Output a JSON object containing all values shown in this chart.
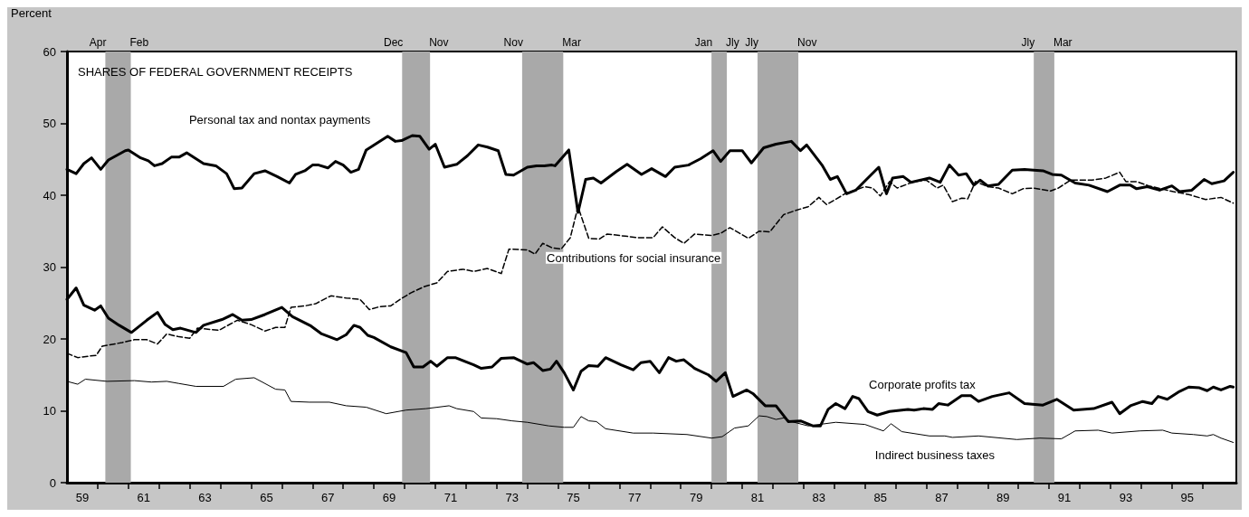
{
  "chart_data": {
    "type": "line",
    "title": "SHARES OF FEDERAL GOVERNMENT RECEIPTS",
    "ylabel": "Percent",
    "xlim": [
      58.5,
      96.6
    ],
    "xticks": [
      59,
      {
        "value": 59.5,
        "label": null
      },
      {
        "value": 60.5,
        "label": null
      },
      61,
      {
        "value": 61.5,
        "label": null
      },
      {
        "value": 62.5,
        "label": null
      },
      63,
      {
        "value": 63.5,
        "label": null
      },
      {
        "value": 64.5,
        "label": null
      },
      65,
      {
        "value": 65.5,
        "label": null
      },
      {
        "value": 66.5,
        "label": null
      },
      67,
      {
        "value": 67.5,
        "label": null
      },
      {
        "value": 68.5,
        "label": null
      },
      69,
      {
        "value": 69.5,
        "label": null
      },
      {
        "value": 70.5,
        "label": null
      },
      71,
      {
        "value": 71.5,
        "label": null
      },
      {
        "value": 72.5,
        "label": null
      },
      73,
      {
        "value": 73.5,
        "label": null
      },
      {
        "value": 74.5,
        "label": null
      },
      75,
      {
        "value": 75.5,
        "label": null
      },
      {
        "value": 76.5,
        "label": null
      },
      77,
      {
        "value": 77.5,
        "label": null
      },
      {
        "value": 78.5,
        "label": null
      },
      79,
      {
        "value": 79.5,
        "label": null
      },
      {
        "value": 80.5,
        "label": null
      },
      81,
      {
        "value": 81.5,
        "label": null
      },
      {
        "value": 82.5,
        "label": null
      },
      83,
      {
        "value": 83.5,
        "label": null
      },
      {
        "value": 84.5,
        "label": null
      },
      85,
      {
        "value": 85.5,
        "label": null
      },
      {
        "value": 86.5,
        "label": null
      },
      87,
      {
        "value": 87.5,
        "label": null
      },
      {
        "value": 88.5,
        "label": null
      },
      89,
      {
        "value": 89.5,
        "label": null
      },
      {
        "value": 90.5,
        "label": null
      },
      91,
      {
        "value": 91.5,
        "label": null
      },
      {
        "value": 92.5,
        "label": null
      },
      93,
      {
        "value": 93.5,
        "label": null
      },
      {
        "value": 94.5,
        "label": null
      },
      95,
      {
        "value": 95.5,
        "label": null
      }
    ],
    "ylim": [
      0,
      60
    ],
    "yticks": [
      0,
      10,
      20,
      30,
      40,
      50,
      60
    ],
    "grid": false,
    "series": [
      {
        "name": "Personal tax and nontax payments",
        "color": "#000000",
        "x": [
          58.5,
          58.8,
          59.05,
          59.3,
          59.6,
          59.85,
          60.4,
          60.5,
          60.9,
          61.15,
          61.35,
          61.6,
          61.9,
          62.15,
          62.4,
          62.95,
          63.35,
          63.7,
          63.95,
          64.2,
          64.6,
          64.95,
          65.35,
          65.75,
          65.95,
          66.25,
          66.5,
          66.7,
          67.0,
          67.25,
          67.5,
          67.75,
          68.0,
          68.25,
          68.95,
          69.2,
          69.4,
          69.75,
          70.0,
          70.3,
          70.5,
          70.8,
          71.2,
          71.55,
          71.9,
          72.2,
          72.55,
          72.8,
          73.05,
          73.5,
          73.8,
          74.05,
          74.3,
          74.4,
          74.85,
          75.15,
          75.4,
          75.65,
          75.9,
          76.4,
          76.75,
          77.22,
          77.55,
          78.0,
          78.3,
          78.75,
          79.15,
          79.55,
          79.8,
          80.1,
          80.5,
          80.8,
          81.2,
          81.6,
          82.1,
          82.4,
          82.6,
          83.1,
          83.37,
          83.6,
          83.9,
          84.2,
          84.55,
          84.95,
          85.2,
          85.4,
          85.75,
          86.0,
          86.6,
          86.95,
          87.25,
          87.55,
          87.8,
          88.05,
          88.25,
          88.5,
          88.85,
          89.3,
          89.7,
          90.3,
          90.6,
          90.9,
          91.35,
          91.8,
          92.4,
          92.8,
          93.15,
          93.35,
          93.7,
          94.1,
          94.5,
          94.75,
          95.15,
          95.55,
          95.8,
          96.2,
          96.5
        ],
        "values": [
          43.6,
          43.0,
          44.4,
          45.2,
          43.6,
          44.9,
          46.2,
          46.3,
          45.2,
          44.8,
          44.1,
          44.4,
          45.3,
          45.3,
          45.9,
          44.4,
          44.1,
          43.0,
          40.9,
          41.0,
          43.0,
          43.4,
          42.6,
          41.7,
          42.9,
          43.4,
          44.2,
          44.2,
          43.8,
          44.7,
          44.2,
          43.2,
          43.6,
          46.3,
          48.2,
          47.5,
          47.6,
          48.3,
          48.2,
          46.4,
          47.1,
          43.9,
          44.3,
          45.5,
          47.0,
          46.7,
          46.2,
          42.9,
          42.8,
          43.9,
          44.1,
          44.1,
          44.2,
          44.1,
          46.3,
          37.6,
          42.2,
          42.4,
          41.7,
          43.3,
          44.3,
          42.9,
          43.7,
          42.6,
          43.9,
          44.2,
          45.1,
          46.2,
          44.7,
          46.2,
          46.2,
          44.5,
          46.6,
          47.1,
          47.5,
          46.2,
          47.0,
          44.2,
          42.2,
          42.6,
          40.2,
          40.7,
          42.2,
          43.9,
          40.2,
          42.4,
          42.6,
          41.8,
          42.4,
          41.8,
          44.2,
          42.8,
          43.0,
          41.4,
          42.1,
          41.3,
          41.5,
          43.5,
          43.6,
          43.4,
          42.9,
          42.8,
          41.7,
          41.4,
          40.5,
          41.4,
          41.4,
          40.9,
          41.2,
          40.7,
          41.3,
          40.5,
          40.7,
          42.2,
          41.6,
          42.0,
          43.2
        ]
      },
      {
        "name": "Contributions for social insurance",
        "color": "#000000",
        "line_style": "dashed",
        "x": [
          58.5,
          58.85,
          59.2,
          59.45,
          59.65,
          60.3,
          60.7,
          61.1,
          61.45,
          61.75,
          62.15,
          62.5,
          62.75,
          63.45,
          64.05,
          64.5,
          64.95,
          65.3,
          65.6,
          65.8,
          66.25,
          66.6,
          67.1,
          67.6,
          68.05,
          68.35,
          68.7,
          69.05,
          69.35,
          69.7,
          70.15,
          70.55,
          70.9,
          71.4,
          71.75,
          72.2,
          72.65,
          72.9,
          73.5,
          73.75,
          74.0,
          74.3,
          74.6,
          74.9,
          75.15,
          75.5,
          75.85,
          76.1,
          76.7,
          77.1,
          77.6,
          77.9,
          78.3,
          78.6,
          78.95,
          79.5,
          79.8,
          80.1,
          80.7,
          81.05,
          81.4,
          81.85,
          82.25,
          82.65,
          83.0,
          83.25,
          83.85,
          84.5,
          84.75,
          85.0,
          85.3,
          85.55,
          86.1,
          86.5,
          86.85,
          87.05,
          87.35,
          87.65,
          87.85,
          88.1,
          88.5,
          88.85,
          89.3,
          89.65,
          90.0,
          90.55,
          90.8,
          91.2,
          91.9,
          92.35,
          92.8,
          93.0,
          93.35,
          93.75,
          94.15,
          94.55,
          95.05,
          95.6,
          96.1,
          96.5
        ],
        "values": [
          18.0,
          17.4,
          17.6,
          17.7,
          19.0,
          19.5,
          19.9,
          19.9,
          19.3,
          20.7,
          20.3,
          20.1,
          21.5,
          21.2,
          22.6,
          22.0,
          21.1,
          21.6,
          21.6,
          24.4,
          24.6,
          24.9,
          26.0,
          25.7,
          25.5,
          24.1,
          24.5,
          24.6,
          25.5,
          26.4,
          27.3,
          27.8,
          29.4,
          29.7,
          29.4,
          29.8,
          29.1,
          32.5,
          32.4,
          31.8,
          33.3,
          32.7,
          32.5,
          34.1,
          38.4,
          34.0,
          33.9,
          34.6,
          34.3,
          34.1,
          34.1,
          35.6,
          34.1,
          33.3,
          34.6,
          34.4,
          34.7,
          35.5,
          34.0,
          35.0,
          34.9,
          37.3,
          37.9,
          38.4,
          39.7,
          38.7,
          40.2,
          41.2,
          41.0,
          39.9,
          41.9,
          41.0,
          41.9,
          42.1,
          41.0,
          41.4,
          39.1,
          39.6,
          39.5,
          41.9,
          41.2,
          41.0,
          40.2,
          40.9,
          41.0,
          40.6,
          41.0,
          42.1,
          42.1,
          42.4,
          43.2,
          41.9,
          41.9,
          41.3,
          40.9,
          40.5,
          40.1,
          39.4,
          39.7,
          38.9
        ]
      },
      {
        "name": "Corporate profits tax",
        "color": "#000000",
        "x": [
          58.5,
          58.8,
          59.05,
          59.4,
          59.6,
          59.85,
          60.2,
          60.6,
          61.1,
          61.45,
          61.7,
          61.95,
          62.2,
          62.7,
          62.95,
          63.55,
          63.9,
          64.2,
          64.5,
          64.95,
          65.5,
          65.85,
          66.45,
          66.8,
          67.3,
          67.6,
          67.85,
          68.05,
          68.3,
          68.5,
          69.05,
          69.55,
          69.8,
          70.1,
          70.35,
          70.55,
          70.9,
          71.15,
          71.75,
          72.0,
          72.35,
          72.65,
          73.05,
          73.5,
          73.7,
          74.0,
          74.25,
          74.45,
          74.7,
          75.0,
          75.25,
          75.5,
          75.8,
          76.05,
          76.55,
          76.95,
          77.2,
          77.5,
          77.8,
          78.1,
          78.35,
          78.6,
          78.95,
          79.4,
          79.65,
          79.95,
          80.2,
          80.65,
          80.85,
          81.25,
          81.6,
          82.0,
          82.4,
          82.8,
          83.05,
          83.3,
          83.55,
          83.85,
          84.1,
          84.3,
          84.6,
          84.9,
          85.3,
          85.9,
          86.1,
          86.4,
          86.7,
          86.9,
          87.2,
          87.65,
          87.95,
          88.2,
          88.65,
          89.2,
          89.7,
          90.3,
          90.75,
          91.3,
          91.95,
          92.55,
          92.8,
          93.15,
          93.55,
          93.85,
          94.05,
          94.35,
          94.75,
          95.05,
          95.4,
          95.65,
          95.85,
          96.1,
          96.4,
          96.5
        ],
        "values": [
          25.5,
          27.1,
          24.7,
          24.0,
          24.6,
          22.9,
          21.9,
          20.9,
          22.6,
          23.7,
          22.0,
          21.3,
          21.5,
          20.9,
          21.9,
          22.7,
          23.4,
          22.6,
          22.7,
          23.4,
          24.4,
          23.1,
          21.8,
          20.7,
          19.9,
          20.6,
          21.9,
          21.6,
          20.5,
          20.2,
          18.9,
          18.1,
          16.1,
          16.1,
          16.9,
          16.2,
          17.4,
          17.4,
          16.4,
          15.9,
          16.1,
          17.3,
          17.4,
          16.5,
          16.7,
          15.6,
          15.8,
          16.9,
          15.3,
          12.9,
          15.5,
          16.3,
          16.2,
          17.4,
          16.4,
          15.7,
          16.7,
          16.9,
          15.3,
          17.4,
          16.9,
          17.1,
          15.9,
          15.0,
          14.1,
          15.3,
          12.0,
          12.9,
          12.4,
          10.7,
          10.7,
          8.5,
          8.6,
          7.9,
          7.9,
          10.2,
          11.0,
          10.3,
          12.0,
          11.7,
          9.9,
          9.4,
          9.9,
          10.2,
          10.1,
          10.3,
          10.2,
          11.0,
          10.8,
          12.1,
          12.1,
          11.3,
          12.0,
          12.5,
          11.0,
          10.8,
          11.6,
          10.1,
          10.3,
          11.2,
          9.6,
          10.7,
          11.3,
          11.0,
          12.0,
          11.6,
          12.7,
          13.3,
          13.2,
          12.8,
          13.3,
          12.9,
          13.4,
          13.3
        ]
      },
      {
        "name": "Indirect business taxes",
        "color": "#000000",
        "x": [
          58.5,
          58.85,
          59.1,
          59.8,
          60.7,
          61.25,
          61.75,
          62.15,
          62.7,
          63.6,
          64.0,
          64.6,
          65.3,
          65.6,
          65.8,
          66.4,
          67.05,
          67.6,
          68.25,
          68.9,
          69.55,
          70.2,
          70.95,
          71.2,
          71.75,
          72.0,
          72.5,
          73.0,
          73.5,
          74.2,
          74.7,
          75.0,
          75.25,
          75.5,
          75.75,
          76.05,
          76.95,
          77.6,
          78.7,
          79.5,
          79.85,
          80.25,
          80.7,
          81.05,
          81.3,
          81.6,
          81.85,
          82.1,
          82.65,
          83.55,
          84.5,
          85.1,
          85.35,
          85.7,
          86.6,
          87.1,
          87.35,
          88.2,
          89.45,
          90.2,
          90.9,
          91.35,
          92.1,
          92.55,
          93.45,
          94.2,
          94.5,
          95.2,
          95.65,
          95.85,
          96.1,
          96.5
        ],
        "values": [
          14.1,
          13.7,
          14.4,
          14.1,
          14.2,
          14.0,
          14.1,
          13.8,
          13.4,
          13.4,
          14.4,
          14.6,
          13.0,
          12.9,
          11.3,
          11.2,
          11.2,
          10.7,
          10.5,
          9.6,
          10.1,
          10.3,
          10.7,
          10.3,
          9.9,
          9.0,
          8.9,
          8.6,
          8.4,
          7.9,
          7.7,
          7.7,
          9.2,
          8.6,
          8.5,
          7.5,
          6.9,
          6.9,
          6.7,
          6.2,
          6.4,
          7.6,
          7.9,
          9.3,
          9.2,
          8.8,
          9.0,
          8.5,
          7.9,
          8.4,
          8.1,
          7.2,
          8.2,
          7.1,
          6.5,
          6.5,
          6.3,
          6.5,
          6.0,
          6.2,
          6.1,
          7.2,
          7.3,
          6.9,
          7.2,
          7.3,
          6.9,
          6.7,
          6.5,
          6.7,
          6.2,
          5.6
        ]
      }
    ],
    "bands": [
      {
        "axis": "x",
        "from": 59.75,
        "to": 60.58,
        "color": "#a9a9a9"
      },
      {
        "axis": "x",
        "from": 69.42,
        "to": 70.33,
        "color": "#a9a9a9"
      },
      {
        "axis": "x",
        "from": 73.33,
        "to": 74.67,
        "color": "#a9a9a9"
      },
      {
        "axis": "x",
        "from": 79.5,
        "to": 80.0,
        "color": "#a9a9a9"
      },
      {
        "axis": "x",
        "from": 81.0,
        "to": 82.33,
        "color": "#a9a9a9"
      },
      {
        "axis": "x",
        "from": 90.0,
        "to": 90.67,
        "color": "#a9a9a9"
      }
    ],
    "annotations": [
      {
        "text": "Apr",
        "x": 59.75,
        "y": 60
      },
      {
        "text": "Feb",
        "x": 60.58,
        "y": 60
      },
      {
        "text": "Dec",
        "x": 69.42,
        "y": 60
      },
      {
        "text": "Nov",
        "x": 70.33,
        "y": 60
      },
      {
        "text": "Nov",
        "x": 73.33,
        "y": 60
      },
      {
        "text": "Mar",
        "x": 74.67,
        "y": 60
      },
      {
        "text": "Jan",
        "x": 79.5,
        "y": 60
      },
      {
        "text": "Jly",
        "x": 80.0,
        "y": 60
      },
      {
        "text": "Jly",
        "x": 81.0,
        "y": 60
      },
      {
        "text": "Nov",
        "x": 82.33,
        "y": 60
      },
      {
        "text": "Jly",
        "x": 90.0,
        "y": 60
      },
      {
        "text": "Mar",
        "x": 90.67,
        "y": 60
      }
    ]
  }
}
